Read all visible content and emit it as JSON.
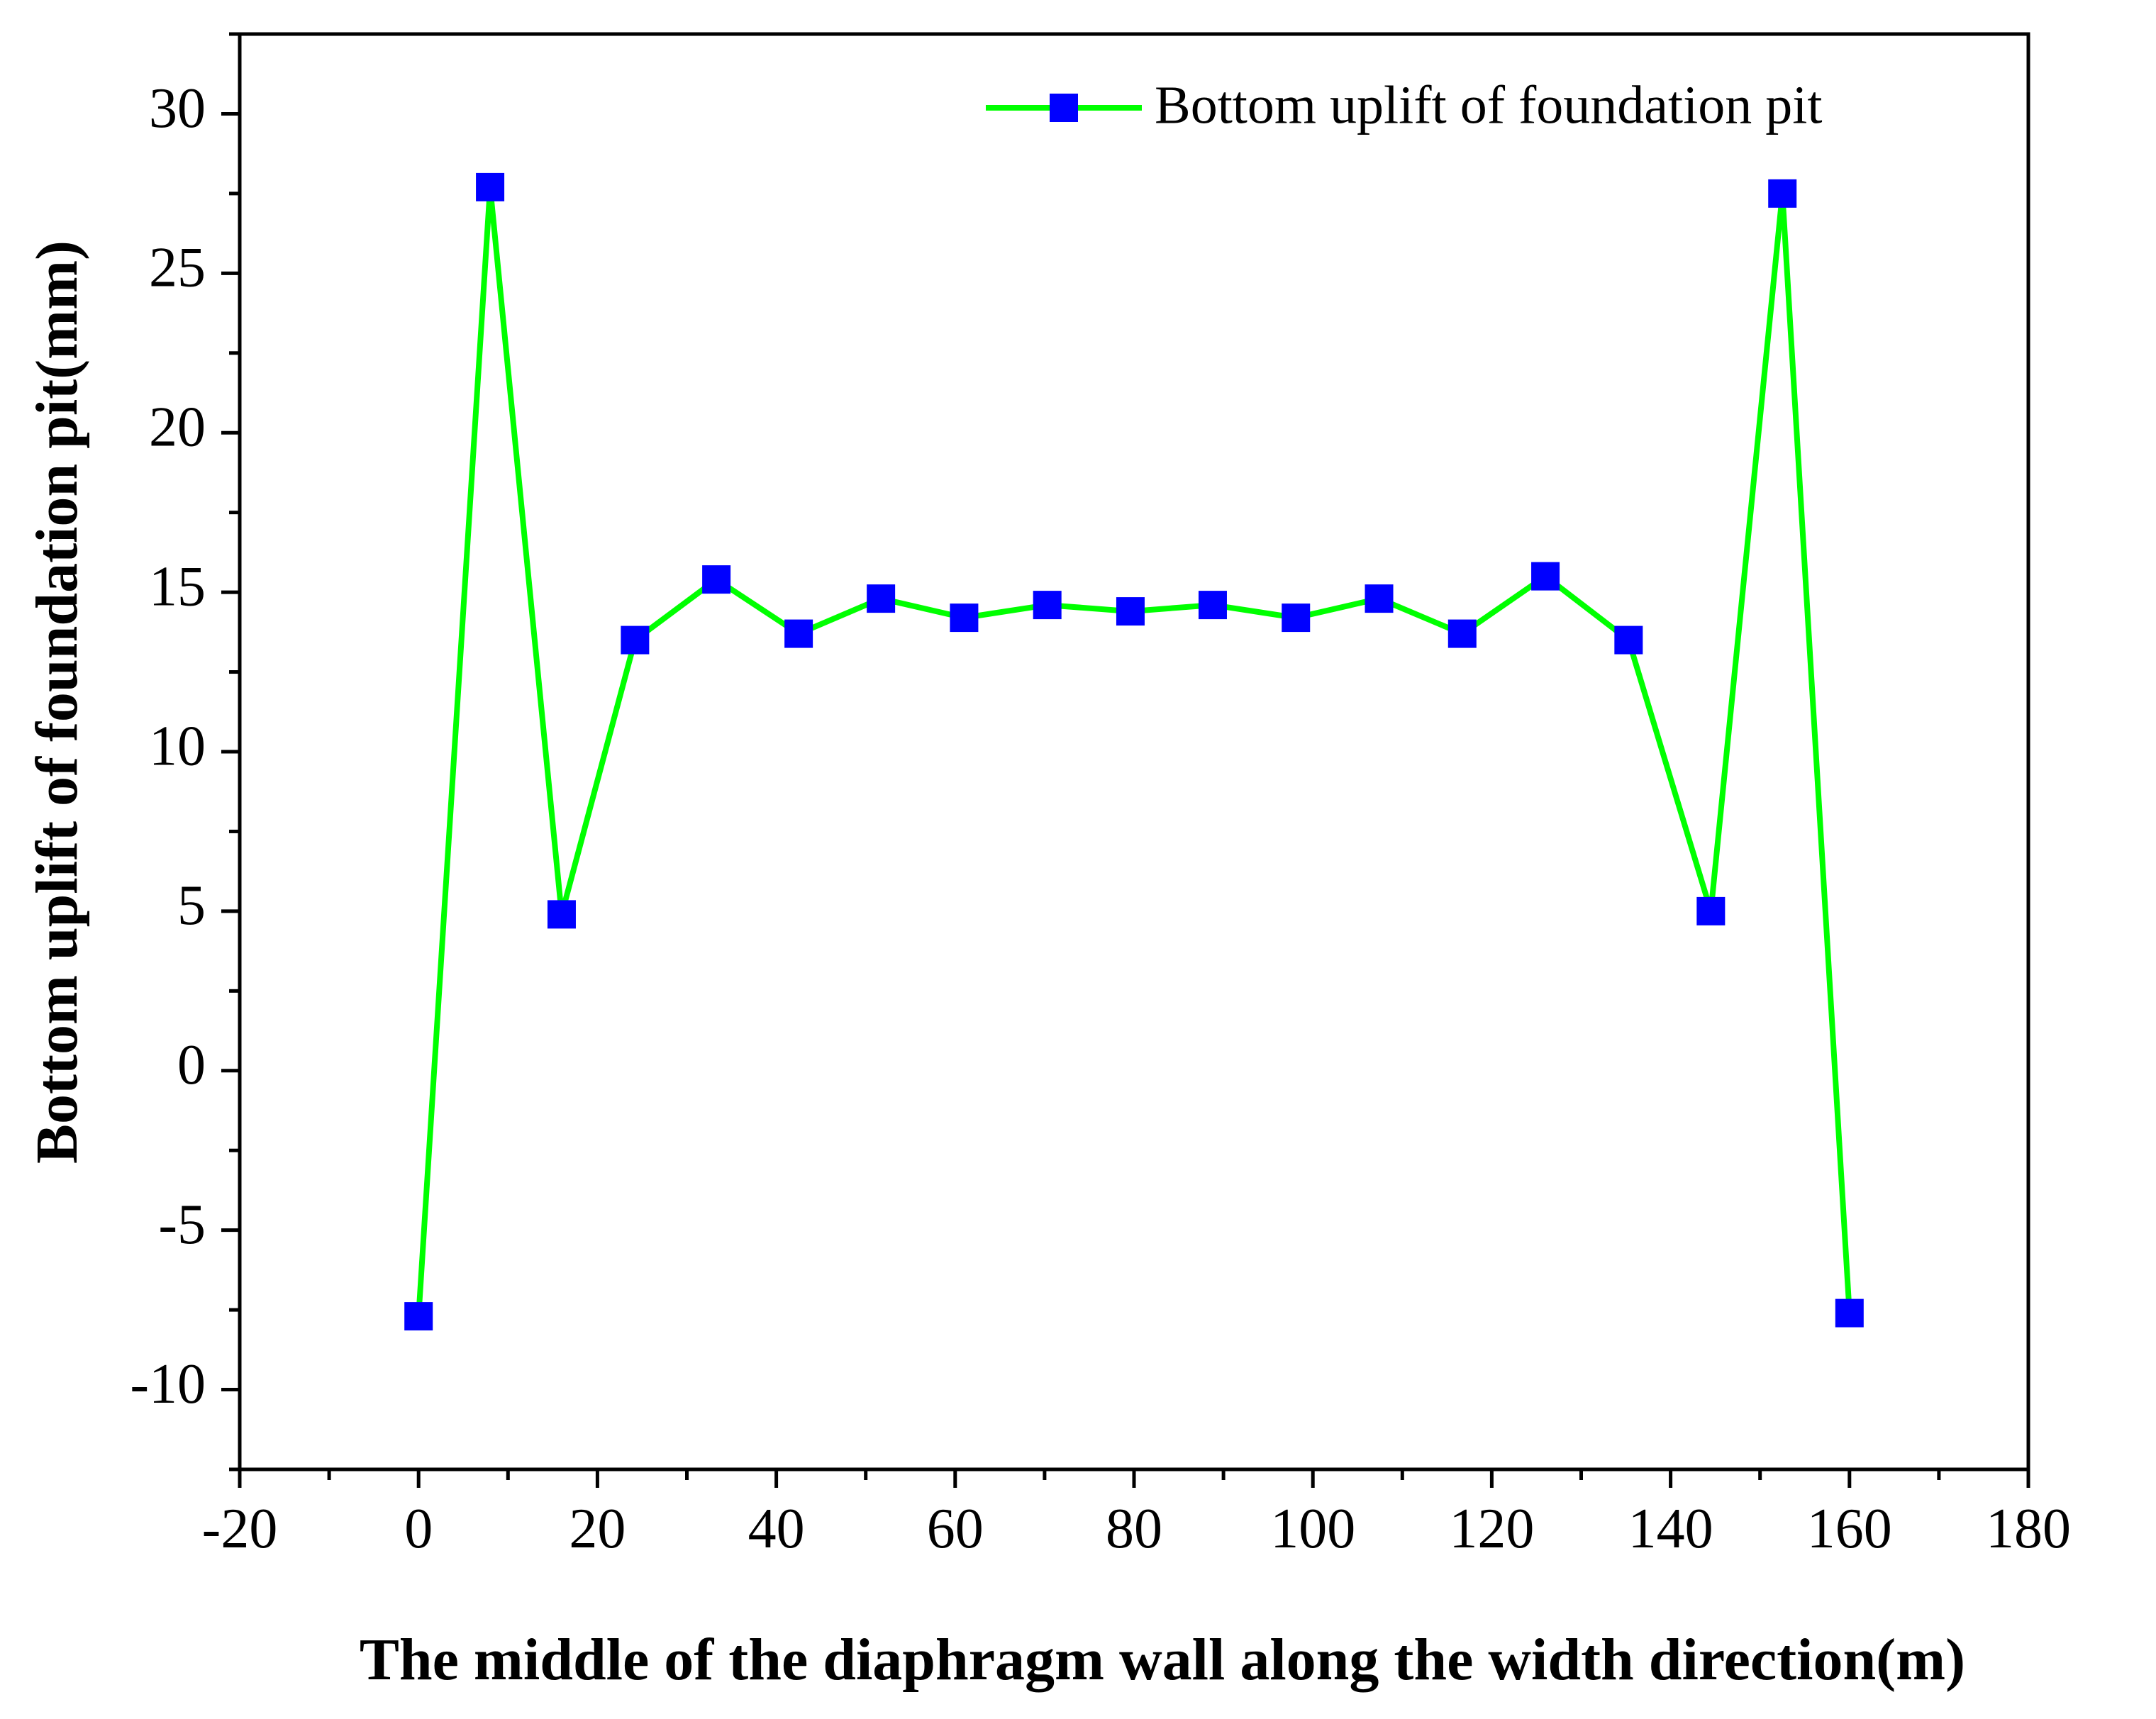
{
  "chart_data": {
    "type": "line",
    "title": "",
    "xlabel": "The middle of the diaphragm wall along the width direction(m)",
    "ylabel": "Bottom uplift of foundation pit(mm)",
    "xlim": [
      -20,
      180
    ],
    "ylim": [
      -12.5,
      32.5
    ],
    "xticks": [
      -20,
      0,
      20,
      40,
      60,
      80,
      100,
      120,
      140,
      160,
      180
    ],
    "xtick_labels": [
      "-20",
      "0",
      "20",
      "40",
      "60",
      "80",
      "100",
      "120",
      "140",
      "160",
      "180"
    ],
    "yticks": [
      -10,
      -5,
      0,
      5,
      10,
      15,
      20,
      25,
      30
    ],
    "ytick_labels": [
      "-10",
      "-5",
      "0",
      "5",
      "10",
      "15",
      "20",
      "25",
      "30"
    ],
    "grid": false,
    "legend_position": "top-right",
    "series": [
      {
        "name": "Bottom uplift of foundation pit",
        "line_color": "#00ff00",
        "marker_color": "#0000ff",
        "marker": "square",
        "x": [
          0,
          8,
          16,
          24.2,
          33.3,
          42.5,
          51.7,
          61,
          70.3,
          79.6,
          88.8,
          98.1,
          107.4,
          116.7,
          126,
          135.3,
          144.5,
          152.5,
          160
        ],
        "y": [
          -7.7,
          27.7,
          4.9,
          13.5,
          15.4,
          13.7,
          14.8,
          14.2,
          14.6,
          14.4,
          14.6,
          14.2,
          14.8,
          13.7,
          15.5,
          13.5,
          5.0,
          27.5,
          -7.6
        ]
      }
    ]
  }
}
